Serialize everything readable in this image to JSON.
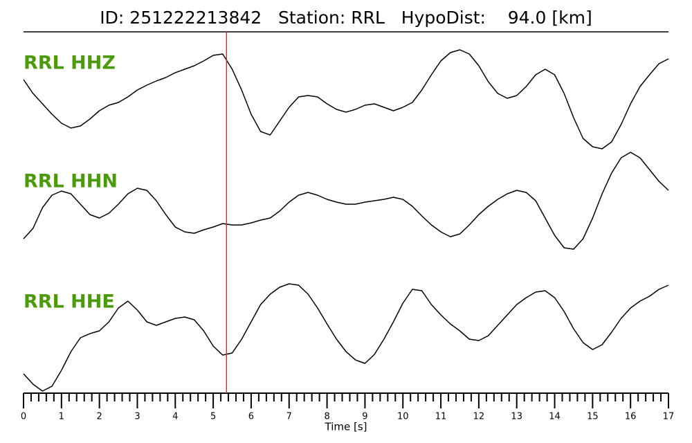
{
  "chart_data": {
    "type": "line",
    "title": "ID: 251222213842   Station: RRL   HypoDist:    94.0 [km]",
    "xlabel": "Time [s]",
    "xlim": [
      0,
      17
    ],
    "xticks": [
      0,
      1,
      2,
      3,
      4,
      5,
      6,
      7,
      8,
      9,
      10,
      11,
      12,
      13,
      14,
      15,
      16,
      17
    ],
    "xminorticks": [
      0.2,
      0.4,
      0.6,
      0.8,
      1.2,
      1.4,
      1.6,
      1.8,
      2.2,
      2.4,
      2.6,
      2.8,
      3.2,
      3.4,
      3.6,
      3.8,
      4.2,
      4.4,
      4.6,
      4.8,
      5.2,
      5.4,
      5.6,
      5.8,
      6.2,
      6.4,
      6.6,
      6.8,
      7.2,
      7.4,
      7.6,
      7.8,
      8.2,
      8.4,
      8.6,
      8.8,
      9.2,
      9.4,
      9.6,
      9.8,
      10.2,
      10.4,
      10.6,
      10.8,
      11.2,
      11.4,
      11.6,
      11.8,
      12.2,
      12.4,
      12.6,
      12.8,
      13.2,
      13.4,
      13.6,
      13.8,
      14.2,
      14.4,
      14.6,
      14.8,
      15.2,
      15.4,
      15.6,
      15.8,
      16.2,
      16.4,
      16.6,
      16.8
    ],
    "ylim": [
      -80,
      80
    ],
    "pick_x": 5.35,
    "pick_color": "#e8251f",
    "label_color": "#4a9a0a",
    "x": [
      0,
      0.25,
      0.5,
      0.75,
      1,
      1.25,
      1.5,
      1.75,
      2,
      2.25,
      2.5,
      2.75,
      3,
      3.25,
      3.5,
      3.75,
      4,
      4.25,
      4.5,
      4.75,
      5,
      5.25,
      5.5,
      5.75,
      6,
      6.25,
      6.5,
      6.75,
      7,
      7.25,
      7.5,
      7.75,
      8,
      8.25,
      8.5,
      8.75,
      9,
      9.25,
      9.5,
      9.75,
      10,
      10.25,
      10.5,
      10.75,
      11,
      11.25,
      11.5,
      11.75,
      12,
      12.25,
      12.5,
      12.75,
      13,
      13.25,
      13.5,
      13.75,
      14,
      14.25,
      14.5,
      14.75,
      15,
      15.25,
      15.5,
      15.75,
      16,
      16.25,
      16.5,
      16.75,
      17
    ],
    "series": [
      {
        "name": "RRL HHZ",
        "color": "#000000",
        "values": [
          25,
          5,
          -10,
          -25,
          -38,
          -45,
          -42,
          -32,
          -20,
          -12,
          -8,
          0,
          10,
          17,
          23,
          28,
          35,
          40,
          45,
          52,
          60,
          62,
          40,
          10,
          -25,
          -50,
          -55,
          -35,
          -15,
          0,
          2,
          0,
          -10,
          -18,
          -22,
          -18,
          -12,
          -10,
          -15,
          -20,
          -15,
          -8,
          10,
          32,
          52,
          64,
          68,
          62,
          45,
          22,
          5,
          -2,
          2,
          15,
          32,
          40,
          32,
          5,
          -30,
          -60,
          -72,
          -75,
          -65,
          -40,
          -10,
          15,
          32,
          48,
          55
        ]
      },
      {
        "name": "RRL HHN",
        "color": "#000000",
        "values": [
          -55,
          -40,
          -10,
          8,
          14,
          10,
          -5,
          -20,
          -25,
          -18,
          -5,
          10,
          18,
          15,
          0,
          -20,
          -38,
          -45,
          -47,
          -42,
          -38,
          -33,
          -35,
          -35,
          -32,
          -28,
          -25,
          -15,
          -2,
          8,
          12,
          8,
          2,
          -2,
          -5,
          -5,
          -2,
          0,
          2,
          5,
          2,
          -8,
          -22,
          -35,
          -45,
          -52,
          -48,
          -35,
          -20,
          -8,
          2,
          10,
          15,
          12,
          0,
          -25,
          -50,
          -68,
          -70,
          -55,
          -25,
          10,
          40,
          62,
          70,
          62,
          45,
          28,
          15
        ]
      },
      {
        "name": "RRL HHE",
        "color": "#000000",
        "values": [
          -55,
          -70,
          -80,
          -73,
          -50,
          -23,
          -3,
          3,
          7,
          20,
          40,
          50,
          37,
          20,
          15,
          20,
          25,
          27,
          23,
          7,
          -15,
          -28,
          -25,
          -5,
          20,
          45,
          60,
          70,
          75,
          73,
          60,
          40,
          17,
          -5,
          -23,
          -35,
          -40,
          -27,
          -5,
          20,
          47,
          67,
          65,
          45,
          30,
          17,
          7,
          -5,
          -7,
          0,
          15,
          30,
          45,
          55,
          63,
          65,
          55,
          35,
          10,
          -10,
          -20,
          -13,
          5,
          25,
          40,
          50,
          57,
          67,
          73
        ]
      }
    ]
  }
}
